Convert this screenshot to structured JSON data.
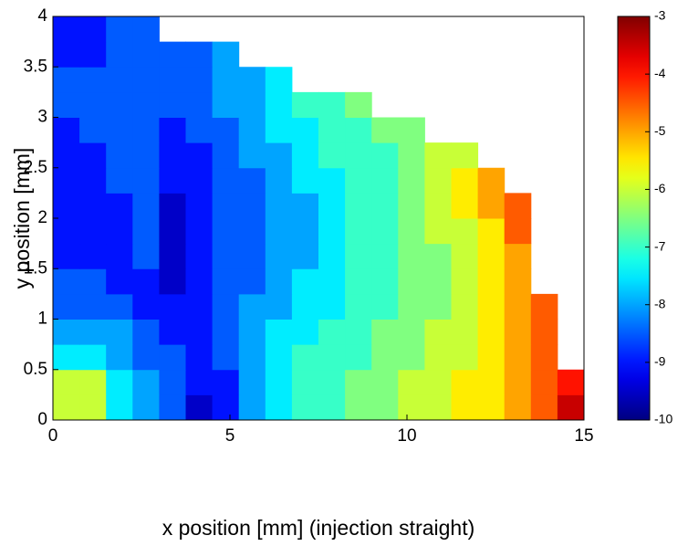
{
  "chart_data": {
    "type": "heatmap",
    "xlabel": "x position [mm] (injection straight)",
    "ylabel": "y position [mm]",
    "colormap": "jet",
    "xlim": [
      0,
      15
    ],
    "xticks": [
      0,
      5,
      10,
      15
    ],
    "ylim": [
      0,
      4
    ],
    "yticks": [
      0,
      0.5,
      1,
      1.5,
      2,
      2.5,
      3,
      3.5,
      4
    ],
    "xbins": [
      0,
      0.75,
      1.5,
      2.25,
      3,
      3.75,
      4.5,
      5.25,
      6,
      6.75,
      7.5,
      8.25,
      9,
      9.75,
      10.5,
      11.25,
      12,
      12.75,
      13.5,
      14.25,
      15
    ],
    "ybins": [
      0,
      0.25,
      0.5,
      0.75,
      1,
      1.25,
      1.5,
      1.75,
      2,
      2.25,
      2.5,
      2.75,
      3,
      3.25,
      3.5,
      3.75,
      4
    ],
    "z": [
      [
        -6,
        -6,
        -7.5,
        -8,
        -8.5,
        -9.5,
        -9,
        -8,
        -7.5,
        -7,
        -7,
        -6.5,
        -6.5,
        -6,
        -6,
        -5.5,
        -5.5,
        -5,
        -4.5,
        -3.5
      ],
      [
        -6,
        -6,
        -7.5,
        -8,
        -8.5,
        -9,
        -9,
        -8,
        -7.5,
        -7,
        -7,
        -6.5,
        -6.5,
        -6,
        -6,
        -5.5,
        -5.5,
        -5,
        -4.5,
        -4
      ],
      [
        -7.5,
        -7.5,
        -8,
        -8.5,
        -8.5,
        -9,
        -8.5,
        -8,
        -7.5,
        -7,
        -7,
        -7,
        -6.5,
        -6.5,
        -6,
        -6,
        -5.5,
        -5,
        -4.5,
        null
      ],
      [
        -8,
        -8,
        -8,
        -8.5,
        -9,
        -9,
        -8.5,
        -8,
        -7.5,
        -7.5,
        -7,
        -7,
        -6.5,
        -6.5,
        -6,
        -6,
        -5.5,
        -5,
        -4.5,
        null
      ],
      [
        -8.5,
        -8.5,
        -8.5,
        -9,
        -9,
        -9,
        -8.5,
        -8,
        -8,
        -7.5,
        -7.5,
        -7,
        -7,
        -6.5,
        -6.5,
        -6,
        -5.5,
        -5,
        -4.5,
        null
      ],
      [
        -8.5,
        -8.5,
        -9,
        -9,
        -9.5,
        -9,
        -8.5,
        -8.5,
        -8,
        -7.5,
        -7.5,
        -7,
        -7,
        -6.5,
        -6.5,
        -6,
        -5.5,
        -5,
        null,
        null
      ],
      [
        -9,
        -9,
        -9,
        -8.5,
        -9.5,
        -9,
        -8.5,
        -8.5,
        -8,
        -8,
        -7.5,
        -7,
        -7,
        -6.5,
        -6.5,
        -6,
        -5.5,
        -5,
        null,
        null
      ],
      [
        -9,
        -9,
        -9,
        -8.5,
        -9.5,
        -9,
        -8.5,
        -8.5,
        -8,
        -8,
        -7.5,
        -7,
        -7,
        -6.5,
        -6,
        -6,
        -5.5,
        -4.5,
        null,
        null
      ],
      [
        -9,
        -9,
        -9,
        -8.5,
        -9.5,
        -9,
        -8.5,
        -8.5,
        -8,
        -8,
        -7.5,
        -7,
        -7,
        -6.5,
        -6,
        -5.5,
        -5,
        -4.5,
        null,
        null
      ],
      [
        -9,
        -9,
        -8.5,
        -8.5,
        -9,
        -9,
        -8.5,
        -8.5,
        -8,
        -7.5,
        -7.5,
        -7,
        -7,
        -6.5,
        -6,
        -5.5,
        -5,
        null,
        null,
        null
      ],
      [
        -9,
        -9,
        -8.5,
        -8.5,
        -9,
        -9,
        -8.5,
        -8,
        -8,
        -7.5,
        -7,
        -7,
        -7,
        -6.5,
        -6,
        -6,
        null,
        null,
        null,
        null
      ],
      [
        -9,
        -8.5,
        -8.5,
        -8.5,
        -9,
        -8.5,
        -8.5,
        -8,
        -7.5,
        -7.5,
        -7,
        -7,
        -6.5,
        -6.5,
        null,
        null,
        null,
        null,
        null,
        null
      ],
      [
        -8.5,
        -8.5,
        -8.5,
        -8.5,
        -8.5,
        -8.5,
        -8,
        -8,
        -7.5,
        -7,
        -7,
        -6.5,
        null,
        null,
        null,
        null,
        null,
        null,
        null,
        null
      ],
      [
        -8.5,
        -8.5,
        -8.5,
        -8.5,
        -8.5,
        -8.5,
        -8,
        -8,
        -7.5,
        null,
        null,
        null,
        null,
        null,
        null,
        null,
        null,
        null,
        null,
        null
      ],
      [
        -9,
        -9,
        -8.5,
        -8.5,
        -8.5,
        -8.5,
        -8,
        null,
        null,
        null,
        null,
        null,
        null,
        null,
        null,
        null,
        null,
        null,
        null,
        null
      ],
      [
        -9,
        -9,
        -8.5,
        -8.5,
        null,
        null,
        null,
        null,
        null,
        null,
        null,
        null,
        null,
        null,
        null,
        null,
        null,
        null,
        null,
        null
      ]
    ],
    "colorbar": {
      "lim": [
        -10,
        -3
      ],
      "ticks": [
        -10,
        -9,
        -8,
        -7,
        -6,
        -5,
        -4,
        -3
      ]
    }
  }
}
